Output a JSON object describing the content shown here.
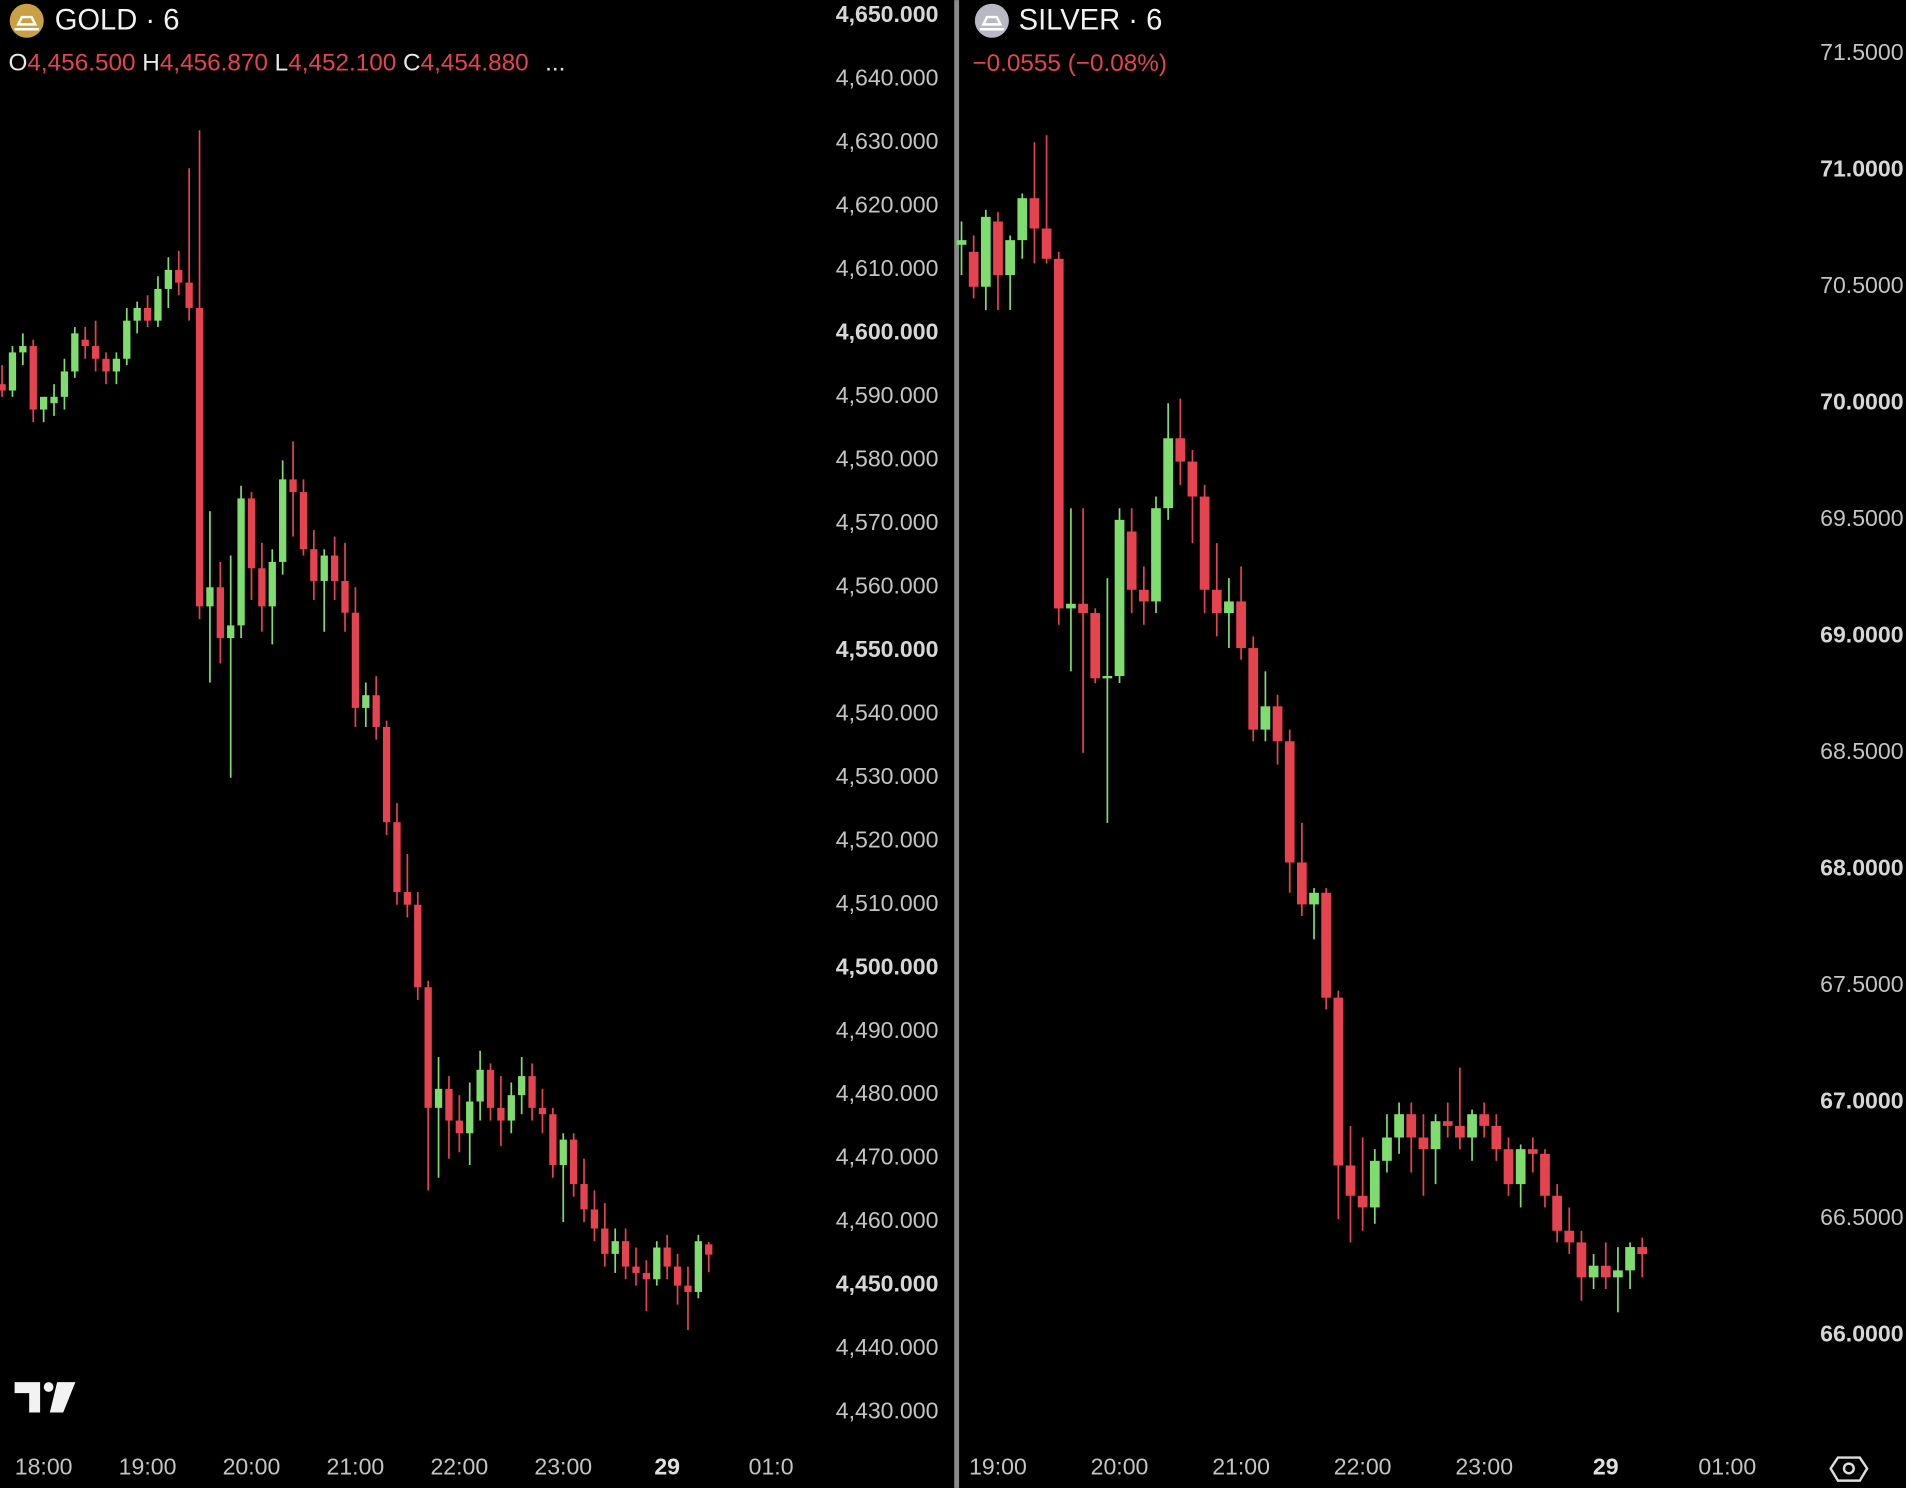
{
  "chart_data": [
    {
      "type": "candlestick",
      "title": "GOLD · 6",
      "ohlc_labels": [
        "O",
        "H",
        "L",
        "C"
      ],
      "ohlc_values": [
        "4,456.500",
        "4,456.870",
        "4,452.100",
        "4,454.880"
      ],
      "more": "...",
      "up_color": "#7fdc6e",
      "down_color": "#e5434f",
      "xlim": [
        17.58,
        25.3
      ],
      "ylim": [
        4425.6,
        4652.5
      ],
      "xticks": [
        {
          "value": 18,
          "label": "18:00"
        },
        {
          "value": 19,
          "label": "19:00"
        },
        {
          "value": 20,
          "label": "20:00"
        },
        {
          "value": 21,
          "label": "21:00"
        },
        {
          "value": 22,
          "label": "22:00"
        },
        {
          "value": 23,
          "label": "23:00"
        },
        {
          "value": 24,
          "label": "29"
        },
        {
          "value": 25,
          "label": "01:0"
        }
      ],
      "yticks": [
        {
          "value": 4650,
          "label": "4,650.000"
        },
        {
          "value": 4640,
          "label": "4,640.000"
        },
        {
          "value": 4630,
          "label": "4,630.000"
        },
        {
          "value": 4620,
          "label": "4,620.000"
        },
        {
          "value": 4610,
          "label": "4,610.000"
        },
        {
          "value": 4600,
          "label": "4,600.000"
        },
        {
          "value": 4590,
          "label": "4,590.000"
        },
        {
          "value": 4580,
          "label": "4,580.000"
        },
        {
          "value": 4570,
          "label": "4,570.000"
        },
        {
          "value": 4560,
          "label": "4,560.000"
        },
        {
          "value": 4550,
          "label": "4,550.000"
        },
        {
          "value": 4540,
          "label": "4,540.000"
        },
        {
          "value": 4530,
          "label": "4,530.000"
        },
        {
          "value": 4520,
          "label": "4,520.000"
        },
        {
          "value": 4510,
          "label": "4,510.000"
        },
        {
          "value": 4500,
          "label": "4,500.000"
        },
        {
          "value": 4490,
          "label": "4,490.000"
        },
        {
          "value": 4480,
          "label": "4,480.000"
        },
        {
          "value": 4470,
          "label": "4,470.000"
        },
        {
          "value": 4460,
          "label": "4,460.000"
        },
        {
          "value": 4450,
          "label": "4,450.000"
        },
        {
          "value": 4440,
          "label": "4,440.000"
        },
        {
          "value": 4430,
          "label": "4,430.000"
        }
      ],
      "x": [
        17.6,
        17.7,
        17.8,
        17.9,
        18.0,
        18.1,
        18.2,
        18.3,
        18.4,
        18.5,
        18.6,
        18.7,
        18.8,
        18.9,
        19.0,
        19.1,
        19.2,
        19.3,
        19.4,
        19.5,
        19.6,
        19.7,
        19.8,
        19.9,
        20.0,
        20.1,
        20.2,
        20.3,
        20.4,
        20.5,
        20.6,
        20.7,
        20.8,
        20.9,
        21.0,
        21.1,
        21.2,
        21.3,
        21.4,
        21.5,
        21.6,
        21.7,
        21.8,
        21.9,
        22.0,
        22.1,
        22.2,
        22.3,
        22.4,
        22.5,
        22.6,
        22.7,
        22.8,
        22.9,
        23.0,
        23.1,
        23.2,
        23.3,
        23.4,
        23.5,
        23.6,
        23.7,
        23.8,
        23.9,
        24.0,
        24.1,
        24.2,
        24.3,
        24.4
      ],
      "open": [
        4592,
        4591,
        4597,
        4598,
        4588,
        4589,
        4590,
        4594,
        4599,
        4598,
        4596,
        4594,
        4596,
        4602,
        4604,
        4602,
        4607,
        4610,
        4608,
        4604,
        4557,
        4560,
        4552,
        4554,
        4574,
        4563,
        4557,
        4564,
        4577,
        4575,
        4566,
        4561,
        4565,
        4561,
        4556,
        4541,
        4543,
        4538,
        4523,
        4512,
        4510,
        4497,
        4478,
        4481,
        4476,
        4474,
        4479,
        4484,
        4478,
        4476,
        4480,
        4483,
        4478,
        4477,
        4469,
        4473,
        4466,
        4462,
        4459,
        4455,
        4457,
        4453,
        4452,
        4451,
        4456,
        4453,
        4450,
        4449,
        4456.5
      ],
      "high": [
        4595,
        4598,
        4600,
        4599,
        4590,
        4592,
        4596,
        4601,
        4601,
        4602,
        4597,
        4597,
        4604,
        4605,
        4606,
        4609,
        4612,
        4613,
        4626,
        4632,
        4572,
        4564,
        4565,
        4576,
        4575,
        4567,
        4566,
        4580,
        4583,
        4577,
        4569,
        4566,
        4568,
        4567,
        4560,
        4545,
        4546,
        4539,
        4526,
        4518,
        4512,
        4498,
        4486,
        4483,
        4480,
        4482,
        4487,
        4485,
        4483,
        4482,
        4486,
        4485,
        4481,
        4478,
        4474,
        4474,
        4470,
        4465,
        4463,
        4459,
        4459,
        4456,
        4454,
        4457,
        4458,
        4455,
        4453,
        4458,
        4456.87
      ],
      "low": [
        4590,
        4590,
        4595,
        4586,
        4586,
        4587,
        4588,
        4593,
        4596,
        4594,
        4592,
        4592,
        4595,
        4600,
        4601,
        4601,
        4604,
        4606,
        4602,
        4555,
        4545,
        4548,
        4530,
        4552,
        4558,
        4553,
        4551,
        4562,
        4568,
        4565,
        4558,
        4553,
        4558,
        4553,
        4538,
        4538,
        4536,
        4521,
        4510,
        4508,
        4495,
        4465,
        4467,
        4470,
        4471,
        4469,
        4476,
        4476,
        4472,
        4474,
        4477,
        4476,
        4474,
        4467,
        4460,
        4464,
        4460,
        4457,
        4453,
        4452,
        4451,
        4450,
        4446,
        4450,
        4451,
        4447,
        4443,
        4448,
        4452.1
      ],
      "close": [
        4591,
        4597,
        4598,
        4588,
        4590,
        4590,
        4594,
        4600,
        4598,
        4596,
        4594,
        4596,
        4602,
        4604,
        4602,
        4607,
        4610,
        4608,
        4604,
        4557,
        4560,
        4552,
        4554,
        4574,
        4563,
        4557,
        4564,
        4577,
        4575,
        4566,
        4561,
        4565,
        4561,
        4556,
        4541,
        4543,
        4538,
        4523,
        4512,
        4510,
        4497,
        4478,
        4481,
        4476,
        4474,
        4479,
        4484,
        4478,
        4476,
        4480,
        4483,
        4478,
        4477,
        4469,
        4473,
        4466,
        4462,
        4459,
        4455,
        4457,
        4453,
        4452,
        4451,
        4456,
        4453,
        4450,
        4449,
        4457,
        4454.88
      ]
    },
    {
      "type": "candlestick",
      "title": "SILVER · 6",
      "change": "−0.0555 (−0.08%)",
      "up_color": "#7fdc6e",
      "down_color": "#e5434f",
      "xlim": [
        18.69,
        25.39
      ],
      "ylim": [
        65.55,
        71.73
      ],
      "xticks": [
        {
          "value": 19,
          "label": "19:00"
        },
        {
          "value": 20,
          "label": "20:00"
        },
        {
          "value": 21,
          "label": "21:00"
        },
        {
          "value": 22,
          "label": "22:00"
        },
        {
          "value": 23,
          "label": "23:00"
        },
        {
          "value": 24,
          "label": "29"
        },
        {
          "value": 25,
          "label": "01:00"
        }
      ],
      "yticks": [
        {
          "value": 71.5,
          "label": "71.5000"
        },
        {
          "value": 71,
          "label": "71.0000"
        },
        {
          "value": 70.5,
          "label": "70.5000"
        },
        {
          "value": 70,
          "label": "70.0000"
        },
        {
          "value": 69.5,
          "label": "69.5000"
        },
        {
          "value": 69,
          "label": "69.0000"
        },
        {
          "value": 68.5,
          "label": "68.5000"
        },
        {
          "value": 68,
          "label": "68.0000"
        },
        {
          "value": 67.5,
          "label": "67.5000"
        },
        {
          "value": 67,
          "label": "67.0000"
        },
        {
          "value": 66.5,
          "label": "66.5000"
        },
        {
          "value": 66,
          "label": "66.0000"
        }
      ],
      "x": [
        18.7,
        18.8,
        18.9,
        19.0,
        19.1,
        19.2,
        19.3,
        19.4,
        19.5,
        19.6,
        19.7,
        19.8,
        19.9,
        20.0,
        20.1,
        20.2,
        20.3,
        20.4,
        20.5,
        20.6,
        20.7,
        20.8,
        20.9,
        21.0,
        21.1,
        21.2,
        21.3,
        21.4,
        21.5,
        21.6,
        21.7,
        21.8,
        21.9,
        22.0,
        22.1,
        22.2,
        22.3,
        22.4,
        22.5,
        22.6,
        22.7,
        22.8,
        22.9,
        23.0,
        23.1,
        23.2,
        23.3,
        23.4,
        23.5,
        23.6,
        23.7,
        23.8,
        23.9,
        24.0,
        24.1,
        24.2,
        24.3
      ],
      "open": [
        70.68,
        70.65,
        70.5,
        70.78,
        70.55,
        70.7,
        70.88,
        70.75,
        70.62,
        69.12,
        69.14,
        69.1,
        68.82,
        68.83,
        69.45,
        69.2,
        69.15,
        69.55,
        69.85,
        69.75,
        69.6,
        69.2,
        69.1,
        69.15,
        68.95,
        68.6,
        68.7,
        68.55,
        68.03,
        67.85,
        67.9,
        67.45,
        66.73,
        66.6,
        66.55,
        66.75,
        66.85,
        66.95,
        66.85,
        66.8,
        66.92,
        66.9,
        66.85,
        66.95,
        66.9,
        66.8,
        66.65,
        66.8,
        66.78,
        66.6,
        66.45,
        66.4,
        66.25,
        66.3,
        66.25,
        66.28,
        66.38
      ],
      "high": [
        70.78,
        70.72,
        70.83,
        70.82,
        70.72,
        70.9,
        71.12,
        71.15,
        70.65,
        69.55,
        69.55,
        69.12,
        69.25,
        69.55,
        69.55,
        69.3,
        69.6,
        70.0,
        70.02,
        69.8,
        69.65,
        69.4,
        69.25,
        69.3,
        69.0,
        68.85,
        68.75,
        68.6,
        68.2,
        67.92,
        67.92,
        67.48,
        66.9,
        66.85,
        66.8,
        66.95,
        67.0,
        67.0,
        66.95,
        66.95,
        67.0,
        67.15,
        66.97,
        67.0,
        66.95,
        66.85,
        66.82,
        66.85,
        66.8,
        66.65,
        66.55,
        66.45,
        66.35,
        66.4,
        66.38,
        66.4,
        66.42
      ],
      "low": [
        70.55,
        70.45,
        70.4,
        70.4,
        70.4,
        70.62,
        70.6,
        70.6,
        69.05,
        68.85,
        68.5,
        68.8,
        68.2,
        68.8,
        69.1,
        69.05,
        69.1,
        69.5,
        69.65,
        69.4,
        69.1,
        69.0,
        68.95,
        68.9,
        68.55,
        68.55,
        68.45,
        67.9,
        67.8,
        67.7,
        67.4,
        66.5,
        66.4,
        66.45,
        66.48,
        66.7,
        66.78,
        66.7,
        66.6,
        66.65,
        66.85,
        66.8,
        66.75,
        66.85,
        66.75,
        66.6,
        66.55,
        66.7,
        66.55,
        66.4,
        66.35,
        66.15,
        66.2,
        66.2,
        66.1,
        66.2,
        66.25
      ],
      "close": [
        70.7,
        70.5,
        70.8,
        70.55,
        70.7,
        70.88,
        70.75,
        70.62,
        69.12,
        69.14,
        69.1,
        68.82,
        68.83,
        69.5,
        69.2,
        69.15,
        69.55,
        69.85,
        69.75,
        69.6,
        69.2,
        69.1,
        69.15,
        68.95,
        68.6,
        68.7,
        68.55,
        68.03,
        67.85,
        67.9,
        67.45,
        66.73,
        66.6,
        66.55,
        66.75,
        66.85,
        66.95,
        66.85,
        66.8,
        66.92,
        66.9,
        66.85,
        66.95,
        66.9,
        66.8,
        66.65,
        66.8,
        66.78,
        66.6,
        66.45,
        66.4,
        66.25,
        66.3,
        66.25,
        66.28,
        66.38,
        66.35
      ]
    }
  ]
}
